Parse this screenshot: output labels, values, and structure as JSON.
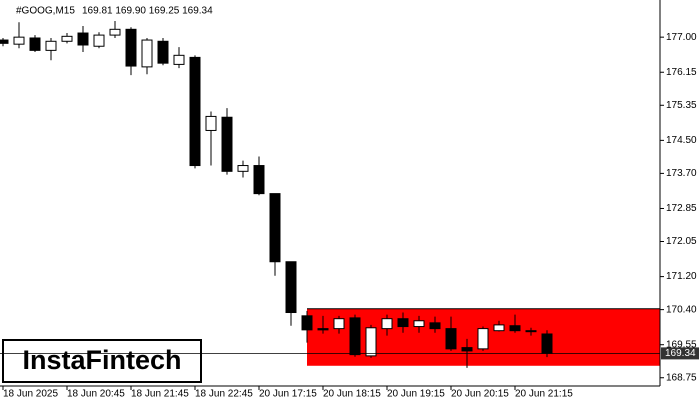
{
  "chart_data": {
    "type": "candlestick",
    "title": "#GOOG,M15",
    "quote": "169.81 169.90 169.25 169.34",
    "logo": "InstaFintech",
    "categories": [
      "18 Jun 2025",
      null,
      null,
      null,
      "18 Jun 20:45",
      null,
      null,
      null,
      "18 Jun 21:45",
      null,
      null,
      null,
      "18 Jun 22:45",
      null,
      null,
      null,
      "20 Jun 17:15",
      null,
      null,
      null,
      "20 Jun 18:15",
      null,
      null,
      null,
      "20 Jun 19:15",
      null,
      null,
      null,
      "20 Jun 20:15",
      null,
      null,
      null,
      "20 Jun 21:15",
      null,
      null
    ],
    "open": [
      176.93,
      176.83,
      176.98,
      176.68,
      176.9,
      177.1,
      176.78,
      177.05,
      177.19,
      176.28,
      176.9,
      176.34,
      176.51,
      174.74,
      175.06,
      173.75,
      173.89,
      173.21,
      171.56,
      170.25,
      169.94,
      169.94,
      170.2,
      169.28,
      169.94,
      170.18,
      169.99,
      170.08,
      169.94,
      169.48,
      169.45,
      169.89,
      170.01,
      169.89,
      169.81
    ],
    "high": [
      176.98,
      177.36,
      177.05,
      176.98,
      177.1,
      177.27,
      177.12,
      177.39,
      177.24,
      176.98,
      176.98,
      176.76,
      176.56,
      175.2,
      175.28,
      174.01,
      174.11,
      173.21,
      171.56,
      170.37,
      170.25,
      170.25,
      170.28,
      170.03,
      170.28,
      170.33,
      170.25,
      170.23,
      170.23,
      169.69,
      169.99,
      170.13,
      170.28,
      169.96,
      169.9
    ],
    "low": [
      176.78,
      176.73,
      176.64,
      176.44,
      176.85,
      176.64,
      176.73,
      176.98,
      176.08,
      176.1,
      176.32,
      176.25,
      173.82,
      173.89,
      173.67,
      173.6,
      173.17,
      171.22,
      170.01,
      169.6,
      169.82,
      169.82,
      169.26,
      169.23,
      169.77,
      169.84,
      169.84,
      169.84,
      169.4,
      168.99,
      169.4,
      169.87,
      169.84,
      169.77,
      169.25
    ],
    "close": [
      176.85,
      177.0,
      176.68,
      176.9,
      177.02,
      176.81,
      177.05,
      177.19,
      176.3,
      176.93,
      176.37,
      176.56,
      173.89,
      175.08,
      173.75,
      173.89,
      173.21,
      171.56,
      170.33,
      169.91,
      169.91,
      170.18,
      169.31,
      169.96,
      170.18,
      169.99,
      170.13,
      169.94,
      169.45,
      169.4,
      169.94,
      170.03,
      169.89,
      169.87,
      169.34
    ],
    "ylim": [
      168.55,
      177.9
    ],
    "yticks": [
      {
        "value": 177.0,
        "label": "177.00"
      },
      {
        "value": 176.15,
        "label": "176.15"
      },
      {
        "value": 175.35,
        "label": "175.35"
      },
      {
        "value": 174.5,
        "label": "174.50"
      },
      {
        "value": 173.7,
        "label": "173.70"
      },
      {
        "value": 172.85,
        "label": "172.85"
      },
      {
        "value": 172.05,
        "label": "172.05"
      },
      {
        "value": 171.2,
        "label": "171.20"
      },
      {
        "value": 170.4,
        "label": "170.40"
      },
      {
        "value": 169.55,
        "label": "169.55"
      },
      {
        "value": 168.75,
        "label": "168.75"
      }
    ],
    "last_price": {
      "value": 169.34,
      "label": "169.34"
    },
    "zone": {
      "top": 170.42,
      "bottom": 169.04,
      "color": "#ff0000"
    },
    "bull_color": "#ffffff",
    "bear_color": "#000000"
  }
}
